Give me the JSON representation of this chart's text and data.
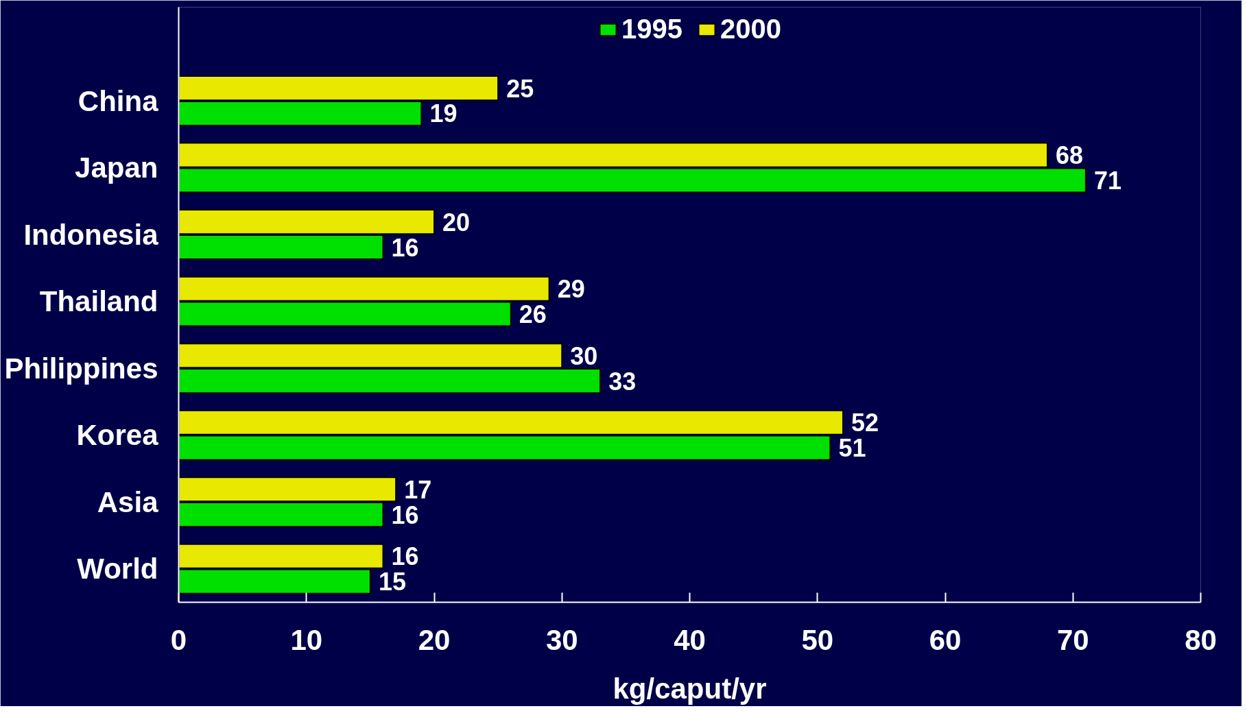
{
  "chart_data": {
    "type": "bar",
    "orientation": "horizontal",
    "categories": [
      "China",
      "Japan",
      "Indonesia",
      "Thailand",
      "Philippines",
      "Korea",
      "Asia",
      "World"
    ],
    "series": [
      {
        "name": "1995",
        "color": "#00e000",
        "values": [
          19,
          71,
          16,
          26,
          33,
          51,
          16,
          15
        ]
      },
      {
        "name": "2000",
        "color": "#e8e800",
        "values": [
          25,
          68,
          20,
          29,
          30,
          52,
          17,
          16
        ]
      }
    ],
    "xlabel": "kg/caput/yr",
    "xlim": [
      0,
      80
    ],
    "xticks": [
      0,
      10,
      20,
      30,
      40,
      50,
      60,
      70,
      80
    ],
    "data_labels": true,
    "grid": false,
    "legend": "top"
  }
}
